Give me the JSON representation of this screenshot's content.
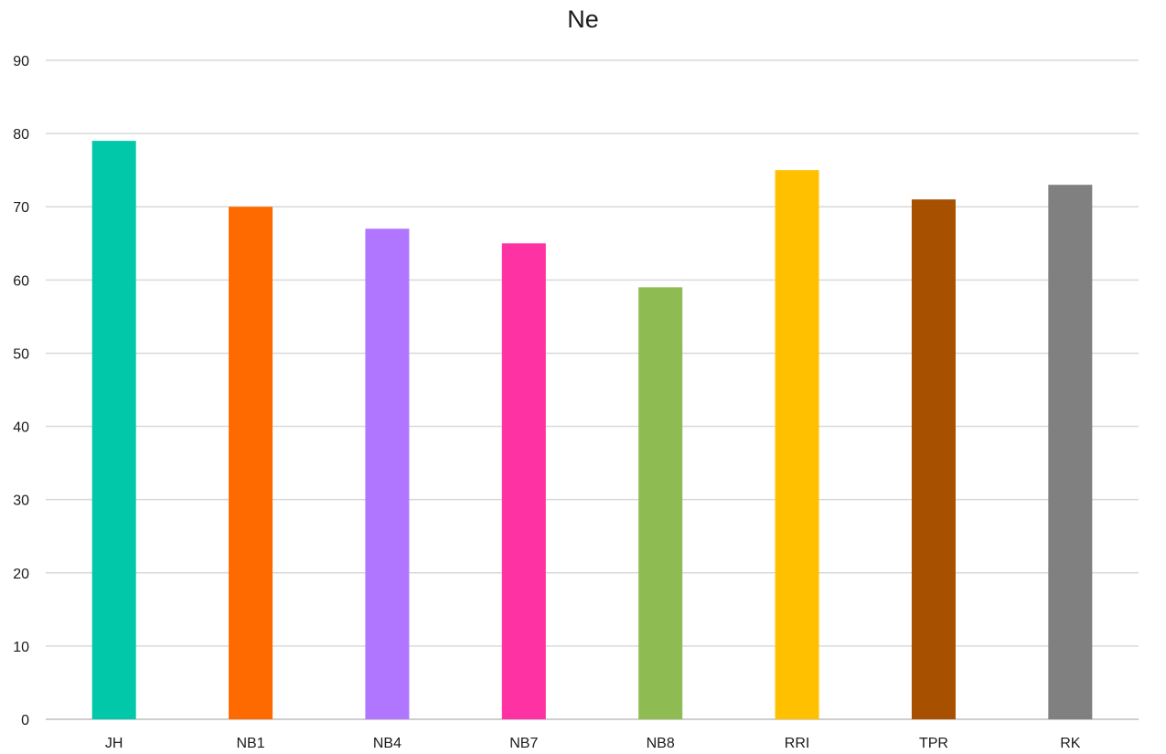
{
  "chart_data": {
    "type": "bar",
    "title": "Ne",
    "xlabel": "",
    "ylabel": "",
    "categories": [
      "JH",
      "NB1",
      "NB4",
      "NB7",
      "NB8",
      "RRI",
      "TPR",
      "RK"
    ],
    "values": [
      79,
      70,
      67,
      65,
      59,
      75,
      71,
      73
    ],
    "colors": [
      "#00C8A8",
      "#FF6A00",
      "#B176FF",
      "#FF32A3",
      "#8EBB52",
      "#FFC000",
      "#A75000",
      "#808080"
    ],
    "ylim": [
      0,
      90
    ],
    "yticks": [
      0,
      10,
      20,
      30,
      40,
      50,
      60,
      70,
      80,
      90
    ],
    "grid": true,
    "legend": "none"
  }
}
